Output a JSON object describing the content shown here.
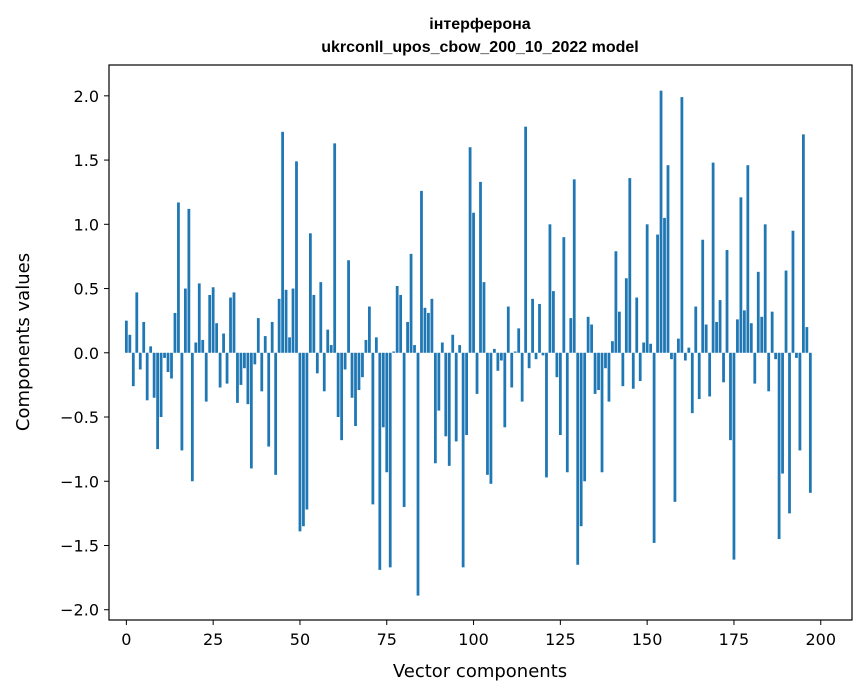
{
  "chart_data": {
    "type": "bar",
    "title_line1": "інтерферона",
    "title_line2": "ukrconll_upos_cbow_200_10_2022 model",
    "xlabel": "Vector components",
    "ylabel": "Components values",
    "xlim": [
      -5,
      209
    ],
    "ylim": [
      -2.08,
      2.24
    ],
    "xticks": [
      0,
      25,
      50,
      75,
      100,
      125,
      150,
      175,
      200
    ],
    "xtick_labels": [
      "0",
      "25",
      "50",
      "75",
      "100",
      "125",
      "150",
      "175",
      "200"
    ],
    "yticks": [
      -2.0,
      -1.5,
      -1.0,
      -0.5,
      0.0,
      0.5,
      1.0,
      1.5,
      2.0
    ],
    "ytick_labels": [
      "−2.0",
      "−1.5",
      "−1.0",
      "−0.5",
      "0.0",
      "0.5",
      "1.0",
      "1.5",
      "2.0"
    ],
    "bar_color": "#1f77b4",
    "values": [
      0.25,
      0.14,
      -0.26,
      0.47,
      -0.13,
      0.24,
      -0.37,
      0.05,
      -0.35,
      -0.75,
      -0.5,
      -0.04,
      -0.15,
      -0.2,
      0.31,
      1.17,
      -0.76,
      0.5,
      1.12,
      -1.0,
      0.08,
      0.54,
      0.1,
      -0.38,
      0.45,
      0.51,
      0.23,
      -0.27,
      0.15,
      -0.24,
      0.43,
      0.47,
      -0.39,
      -0.25,
      -0.12,
      -0.4,
      -0.9,
      -0.09,
      0.27,
      -0.3,
      0.13,
      -0.73,
      0.24,
      -0.95,
      0.42,
      1.72,
      0.49,
      0.12,
      0.5,
      1.49,
      -1.39,
      -1.35,
      -1.22,
      0.93,
      0.45,
      -0.16,
      0.55,
      -0.3,
      0.18,
      0.06,
      1.63,
      -0.5,
      -0.68,
      -0.13,
      0.72,
      -0.35,
      -0.57,
      -0.29,
      -0.19,
      0.1,
      0.36,
      -1.18,
      0.12,
      -1.69,
      -0.58,
      -0.93,
      -1.67,
      0.01,
      0.52,
      0.45,
      -1.2,
      0.24,
      0.77,
      0.06,
      -1.89,
      1.26,
      0.35,
      0.31,
      0.42,
      -0.86,
      -0.45,
      0.08,
      -0.65,
      -0.88,
      0.14,
      -0.69,
      0.06,
      -1.67,
      -0.64,
      1.6,
      1.09,
      -0.32,
      1.33,
      0.55,
      -0.95,
      -1.02,
      0.03,
      -0.14,
      -0.06,
      -0.58,
      0.36,
      -0.27,
      0.01,
      0.19,
      -0.38,
      1.76,
      -0.12,
      0.42,
      -0.05,
      0.38,
      -0.02,
      -0.97,
      1.0,
      0.48,
      -0.19,
      -0.64,
      0.9,
      -0.93,
      0.27,
      1.35,
      -1.65,
      -1.35,
      -1.0,
      0.28,
      0.22,
      -0.32,
      -0.29,
      -0.93,
      -0.12,
      -0.38,
      0.09,
      0.79,
      0.32,
      -0.26,
      0.58,
      1.36,
      -0.28,
      0.43,
      -0.22,
      0.08,
      1.0,
      0.07,
      -1.48,
      0.92,
      2.04,
      1.05,
      1.46,
      -0.05,
      -1.16,
      0.11,
      1.99,
      -0.06,
      0.04,
      -0.47,
      0.36,
      -0.36,
      0.88,
      0.22,
      -0.34,
      1.48,
      0.24,
      0.41,
      -0.23,
      0.8,
      -0.68,
      -1.61,
      0.26,
      1.21,
      0.33,
      1.46,
      0.23,
      -0.24,
      0.63,
      0.28,
      1.0,
      -0.3,
      0.32,
      -0.05,
      -1.45,
      -0.94,
      0.64,
      -1.25,
      0.95,
      -0.04,
      -0.76,
      1.7,
      0.2,
      -1.09
    ]
  }
}
